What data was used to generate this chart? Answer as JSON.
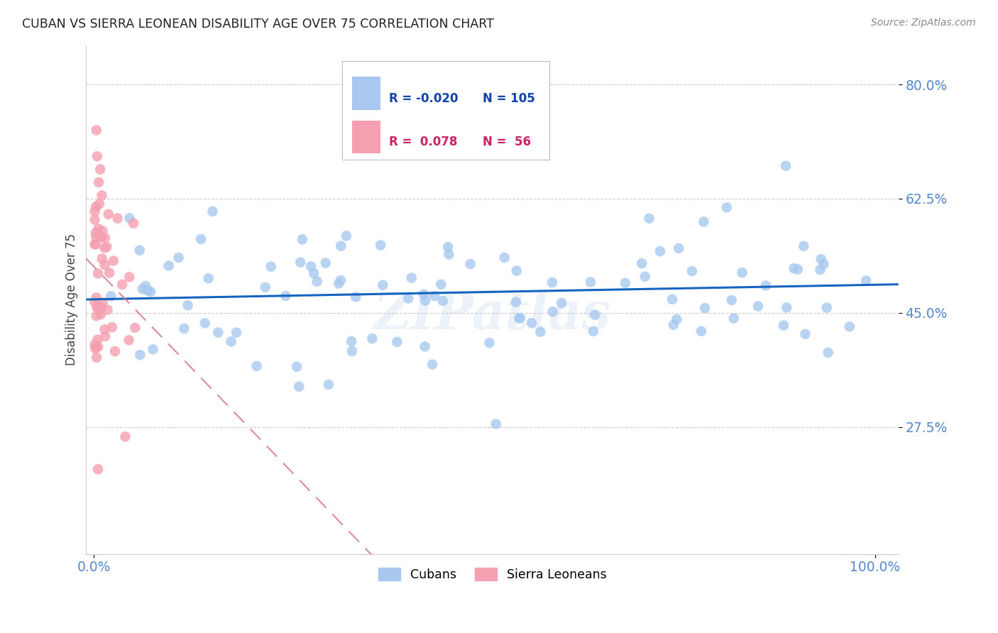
{
  "title": "CUBAN VS SIERRA LEONEAN DISABILITY AGE OVER 75 CORRELATION CHART",
  "source": "Source: ZipAtlas.com",
  "ylabel": "Disability Age Over 75",
  "xlim": [
    -0.01,
    1.03
  ],
  "ylim": [
    0.08,
    0.86
  ],
  "yticks": [
    0.275,
    0.45,
    0.625,
    0.8
  ],
  "ytick_labels": [
    "27.5%",
    "45.0%",
    "62.5%",
    "80.0%"
  ],
  "xtick_labels": [
    "0.0%",
    "100.0%"
  ],
  "xtick_positions": [
    0.0,
    1.0
  ],
  "cuban_color": "#a8c8f0",
  "sl_color": "#f4a0b0",
  "trend_cuban_color": "#1565c0",
  "trend_sl_color": "#d48090",
  "legend_R_cuban": "-0.020",
  "legend_N_cuban": "105",
  "legend_R_sl": "0.078",
  "legend_N_sl": "56",
  "watermark": "ZIPatlas",
  "tick_color": "#5588cc",
  "grid_color": "#cccccc",
  "title_color": "#222222",
  "source_color": "#888888",
  "ylabel_color": "#444444"
}
